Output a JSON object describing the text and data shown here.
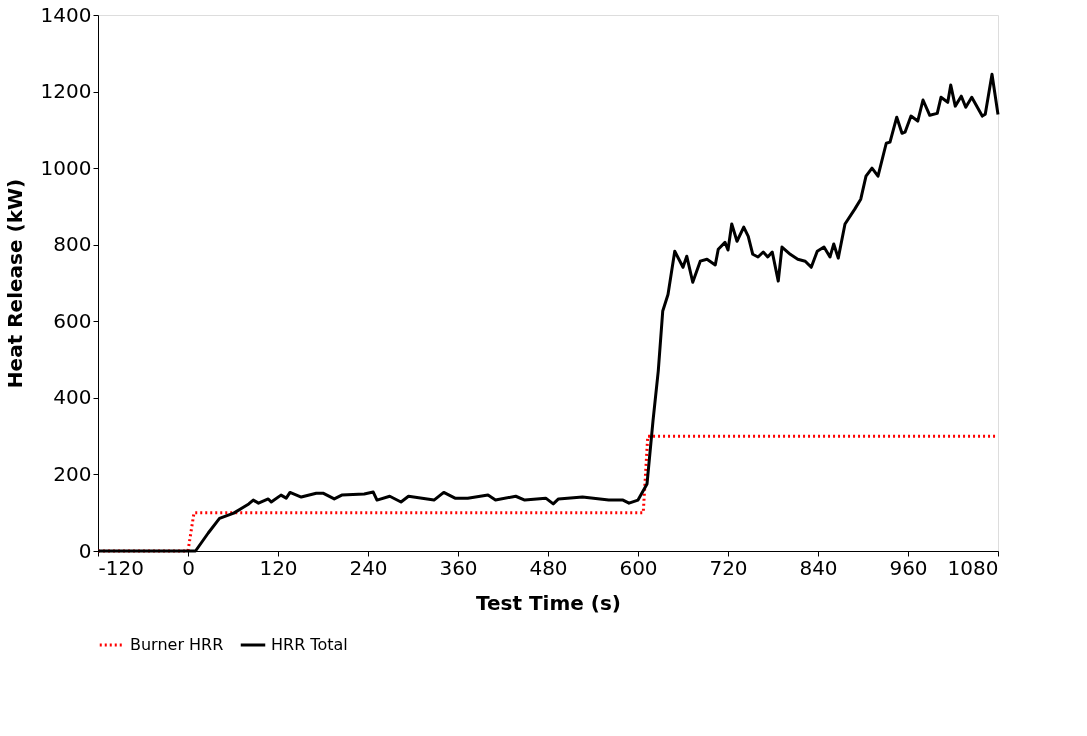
{
  "chart_data": {
    "type": "line",
    "xlabel": "Test Time (s)",
    "ylabel": "Heat Release (kW)",
    "xlim": [
      -120,
      1080
    ],
    "xticks": [
      -120,
      0,
      120,
      240,
      360,
      480,
      600,
      720,
      840,
      960,
      1080
    ],
    "ylim": [
      0,
      1400
    ],
    "yticks": [
      0,
      200,
      400,
      600,
      800,
      1000,
      1200,
      1400
    ],
    "grid": false,
    "legend": "bottom",
    "marker": "none",
    "series": [
      {
        "name": "Burner HRR",
        "color": "#ff0000",
        "line_style": "dotted",
        "x": [
          -120,
          0,
          8,
          607,
          613,
          1080
        ],
        "values": [
          0,
          0,
          100,
          100,
          300,
          300
        ]
      },
      {
        "name": "HRR Total",
        "color": "#000000",
        "line_style": "solid",
        "x": [
          -120,
          0,
          10,
          27,
          42,
          61,
          81,
          87,
          94,
          107,
          111,
          124,
          131,
          136,
          151,
          171,
          180,
          195,
          205,
          235,
          247,
          252,
          269,
          284,
          294,
          328,
          341,
          356,
          373,
          400,
          410,
          437,
          449,
          477,
          487,
          494,
          526,
          561,
          580,
          588,
          600,
          612,
          620,
          627,
          633,
          640,
          649,
          660,
          665,
          673,
          683,
          692,
          703,
          707,
          716,
          720,
          725,
          732,
          741,
          747,
          753,
          760,
          767,
          773,
          779,
          787,
          792,
          803,
          813,
          823,
          831,
          839,
          848,
          856,
          861,
          867,
          876,
          889,
          897,
          904,
          912,
          920,
          931,
          936,
          945,
          952,
          956,
          964,
          973,
          980,
          989,
          999,
          1004,
          1013,
          1017,
          1023,
          1031,
          1037,
          1045,
          1059,
          1063,
          1072,
          1080
        ],
        "values": [
          0,
          0,
          0,
          47,
          85,
          99,
          123,
          133,
          125,
          136,
          128,
          146,
          138,
          153,
          141,
          151,
          151,
          136,
          146,
          149,
          154,
          133,
          143,
          128,
          143,
          133,
          153,
          138,
          138,
          146,
          133,
          143,
          133,
          138,
          123,
          136,
          141,
          133,
          133,
          125,
          133,
          175,
          340,
          470,
          627,
          670,
          783,
          741,
          770,
          702,
          757,
          762,
          747,
          788,
          806,
          786,
          854,
          809,
          846,
          822,
          775,
          768,
          781,
          768,
          781,
          705,
          794,
          775,
          762,
          757,
          741,
          783,
          794,
          768,
          802,
          765,
          854,
          893,
          919,
          979,
          1000,
          979,
          1065,
          1068,
          1133,
          1091,
          1094,
          1136,
          1123,
          1178,
          1138,
          1143,
          1185,
          1172,
          1217,
          1162,
          1188,
          1159,
          1185,
          1136,
          1141,
          1245,
          1140
        ]
      }
    ]
  }
}
